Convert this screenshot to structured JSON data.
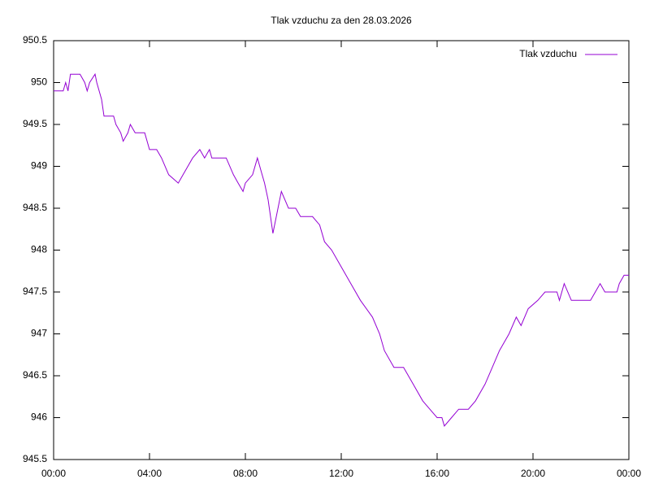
{
  "chart_data": {
    "type": "line",
    "title": "Tlak vzduchu za den 28.03.2026",
    "x": [
      0,
      0.4,
      0.5,
      0.6,
      0.7,
      1.0,
      1.1,
      1.3,
      1.4,
      1.5,
      1.73,
      1.8,
      2.0,
      2.1,
      2.5,
      2.6,
      2.8,
      2.9,
      3.1,
      3.2,
      3.4,
      3.8,
      4.0,
      4.3,
      4.5,
      4.8,
      5.2,
      5.4,
      5.6,
      5.8,
      6.1,
      6.3,
      6.5,
      6.6,
      7.2,
      7.5,
      7.7,
      7.9,
      8.0,
      8.3,
      8.5,
      8.7,
      8.8,
      8.95,
      9.15,
      9.5,
      9.8,
      10.1,
      10.3,
      10.8,
      11.1,
      11.3,
      11.6,
      12.0,
      12.4,
      12.8,
      13.3,
      13.6,
      13.8,
      14.2,
      14.6,
      15.0,
      15.4,
      15.7,
      16.0,
      16.2,
      16.3,
      16.6,
      16.9,
      17.3,
      17.6,
      18.0,
      18.3,
      18.6,
      19.0,
      19.3,
      19.5,
      19.8,
      20.2,
      20.5,
      21.0,
      21.1,
      21.3,
      21.6,
      22.4,
      22.6,
      22.8,
      23.0,
      23.5,
      23.6,
      23.8,
      24.0
    ],
    "series": [
      {
        "name": "Tlak vzduchu",
        "color": "#9400d3",
        "values": [
          949.9,
          949.9,
          950.0,
          949.9,
          950.1,
          950.1,
          950.1,
          950.0,
          949.9,
          950.0,
          950.1,
          950.0,
          949.8,
          949.6,
          949.6,
          949.5,
          949.4,
          949.3,
          949.4,
          949.5,
          949.4,
          949.4,
          949.2,
          949.2,
          949.1,
          948.9,
          948.8,
          948.9,
          949.0,
          949.1,
          949.2,
          949.1,
          949.2,
          949.1,
          949.1,
          948.9,
          948.8,
          948.7,
          948.8,
          948.9,
          949.1,
          948.9,
          948.8,
          948.6,
          948.2,
          948.7,
          948.5,
          948.5,
          948.4,
          948.4,
          948.3,
          948.1,
          948.0,
          947.8,
          947.6,
          947.4,
          947.2,
          947.0,
          946.8,
          946.6,
          946.6,
          946.4,
          946.2,
          946.1,
          946.0,
          946.0,
          945.9,
          946.0,
          946.1,
          946.1,
          946.2,
          946.4,
          946.6,
          946.8,
          947.0,
          947.2,
          947.1,
          947.3,
          947.4,
          947.5,
          947.5,
          947.4,
          947.6,
          947.4,
          947.4,
          947.5,
          947.6,
          947.5,
          947.5,
          947.6,
          947.7,
          947.7
        ]
      }
    ],
    "xlim": [
      0,
      24
    ],
    "xticks": [
      {
        "value": 0,
        "label": "00:00"
      },
      {
        "value": 4,
        "label": "04:00"
      },
      {
        "value": 8,
        "label": "08:00"
      },
      {
        "value": 12,
        "label": "12:00"
      },
      {
        "value": 16,
        "label": "16:00"
      },
      {
        "value": 20,
        "label": "20:00"
      },
      {
        "value": 24,
        "label": "00:00"
      }
    ],
    "ylim": [
      945.5,
      950.5
    ],
    "yticks": [
      945.5,
      946,
      946.5,
      947,
      947.5,
      948,
      948.5,
      949,
      949.5,
      950,
      950.5
    ],
    "legend": "top-right"
  }
}
